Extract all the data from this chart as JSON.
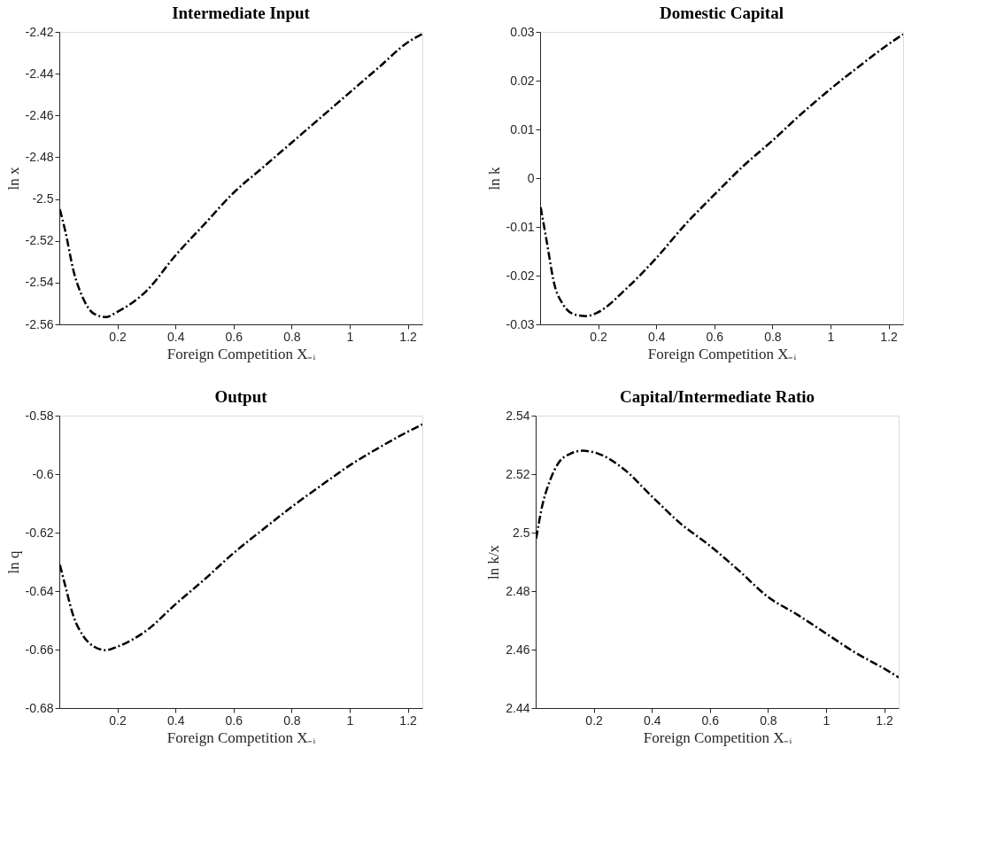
{
  "chart_data": [
    {
      "type": "line",
      "title": "Intermediate Input",
      "xlabel": "Foreign Competition X₋ᵢ",
      "ylabel": "ln x",
      "line_style": "dashdot",
      "grid": false,
      "xlim": [
        0,
        1.25
      ],
      "xticks": [
        0.2,
        0.4,
        0.6,
        0.8,
        1,
        1.2
      ],
      "ylim": [
        -2.56,
        -2.42
      ],
      "yticks": [
        -2.56,
        -2.54,
        -2.52,
        -2.5,
        -2.48,
        -2.46,
        -2.44,
        -2.42
      ],
      "x": [
        0.002,
        0.02,
        0.05,
        0.08,
        0.12,
        0.16,
        0.2,
        0.3,
        0.4,
        0.5,
        0.6,
        0.7,
        0.8,
        0.9,
        1.0,
        1.1,
        1.2,
        1.25
      ],
      "series": [
        {
          "color": "#000000",
          "values": [
            -2.505,
            -2.515,
            -2.535,
            -2.547,
            -2.555,
            -2.5565,
            -2.554,
            -2.544,
            -2.527,
            -2.512,
            -2.497,
            -2.485,
            -2.473,
            -2.461,
            -2.449,
            -2.437,
            -2.425,
            -2.421
          ]
        }
      ]
    },
    {
      "type": "line",
      "title": "Domestic Capital",
      "xlabel": "Foreign Competition X₋ᵢ",
      "ylabel": "ln k",
      "line_style": "dashdot",
      "grid": false,
      "xlim": [
        0,
        1.25
      ],
      "xticks": [
        0.2,
        0.4,
        0.6,
        0.8,
        1,
        1.2
      ],
      "ylim": [
        -0.03,
        0.03
      ],
      "yticks": [
        -0.03,
        -0.02,
        -0.01,
        0,
        0.01,
        0.02,
        0.03
      ],
      "x": [
        0.002,
        0.02,
        0.05,
        0.08,
        0.12,
        0.16,
        0.2,
        0.3,
        0.4,
        0.5,
        0.6,
        0.7,
        0.8,
        0.9,
        1.0,
        1.1,
        1.2,
        1.25
      ],
      "series": [
        {
          "color": "#000000",
          "values": [
            -0.006,
            -0.012,
            -0.022,
            -0.026,
            -0.028,
            -0.0283,
            -0.0275,
            -0.0225,
            -0.0164,
            -0.0095,
            -0.0034,
            0.0025,
            0.0077,
            0.0132,
            0.0183,
            0.023,
            0.0275,
            0.0295
          ]
        }
      ]
    },
    {
      "type": "line",
      "title": "Output",
      "xlabel": "Foreign Competition X₋ᵢ",
      "ylabel": "ln q",
      "line_style": "dashdot",
      "grid": false,
      "xlim": [
        0,
        1.25
      ],
      "xticks": [
        0.2,
        0.4,
        0.6,
        0.8,
        1,
        1.2
      ],
      "ylim": [
        -0.68,
        -0.58
      ],
      "yticks": [
        -0.68,
        -0.66,
        -0.64,
        -0.62,
        -0.6,
        -0.58
      ],
      "x": [
        0.002,
        0.02,
        0.05,
        0.08,
        0.12,
        0.16,
        0.2,
        0.3,
        0.4,
        0.5,
        0.6,
        0.7,
        0.8,
        0.9,
        1.0,
        1.1,
        1.2,
        1.25
      ],
      "series": [
        {
          "color": "#000000",
          "values": [
            -0.631,
            -0.638,
            -0.649,
            -0.655,
            -0.659,
            -0.6602,
            -0.659,
            -0.6535,
            -0.6445,
            -0.636,
            -0.627,
            -0.619,
            -0.6112,
            -0.604,
            -0.597,
            -0.591,
            -0.5855,
            -0.583
          ]
        }
      ]
    },
    {
      "type": "line",
      "title": "Capital/Intermediate Ratio",
      "xlabel": "Foreign Competition X₋ᵢ",
      "ylabel": "ln k/x",
      "line_style": "dashdot",
      "grid": false,
      "xlim": [
        0,
        1.25
      ],
      "xticks": [
        0.2,
        0.4,
        0.6,
        0.8,
        1,
        1.2
      ],
      "ylim": [
        2.44,
        2.54
      ],
      "yticks": [
        2.44,
        2.46,
        2.48,
        2.5,
        2.52,
        2.54
      ],
      "x": [
        0.002,
        0.02,
        0.05,
        0.08,
        0.12,
        0.16,
        0.2,
        0.3,
        0.4,
        0.5,
        0.6,
        0.7,
        0.8,
        0.9,
        1.0,
        1.1,
        1.2,
        1.25
      ],
      "series": [
        {
          "color": "#000000",
          "values": [
            2.498,
            2.508,
            2.518,
            2.524,
            2.527,
            2.528,
            2.5275,
            2.522,
            2.5124,
            2.503,
            2.4955,
            2.487,
            2.478,
            2.472,
            2.4655,
            2.459,
            2.4535,
            2.4505
          ]
        }
      ]
    }
  ]
}
